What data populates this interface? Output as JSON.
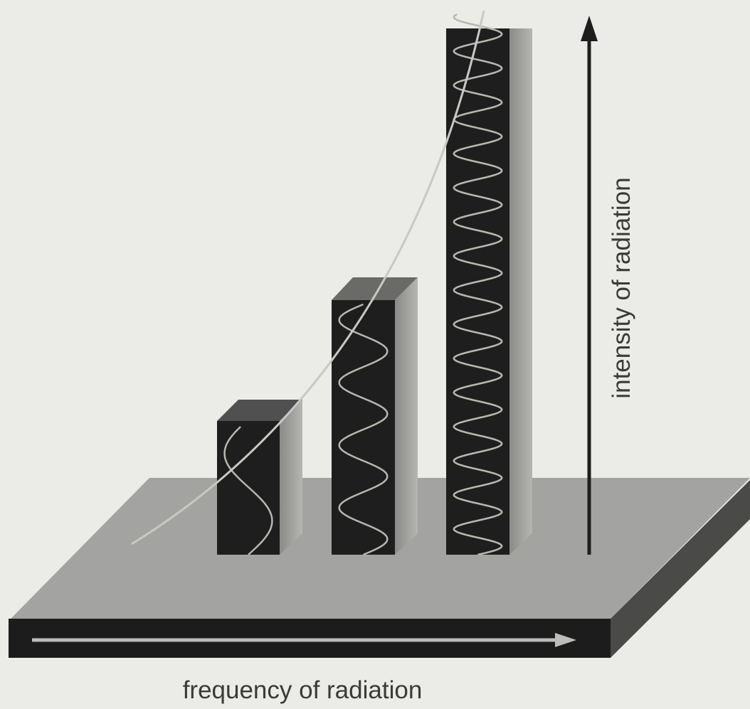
{
  "labels": {
    "vertical_axis": "intensity of radiation",
    "horizontal_axis": "frequency of radiation"
  }
}
